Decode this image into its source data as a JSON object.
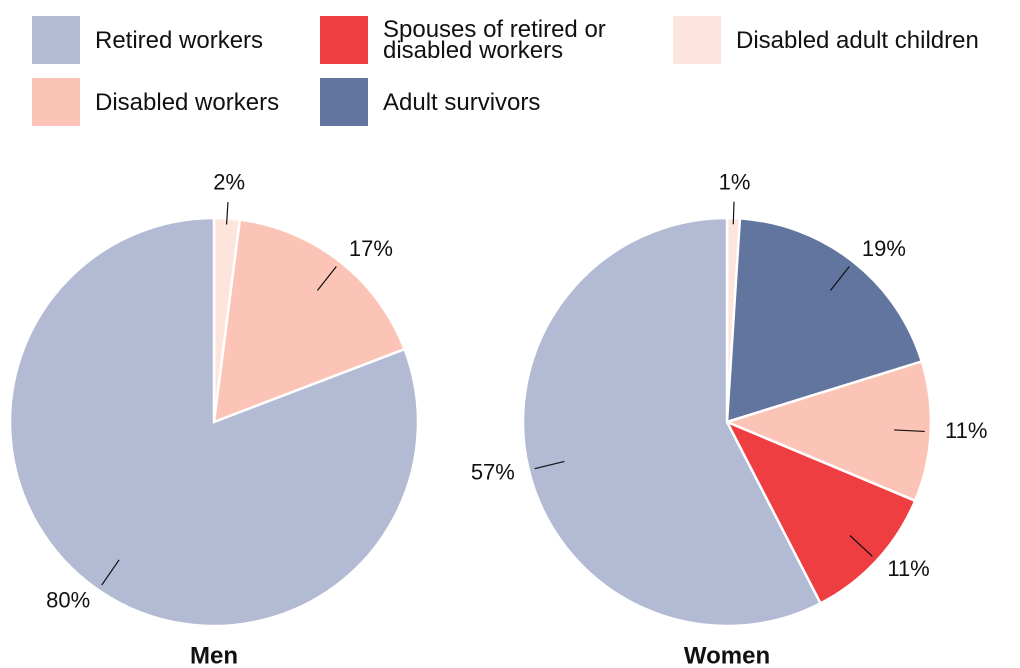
{
  "legend": {
    "entries": [
      {
        "name": "Retired workers",
        "color": "#b3bad3"
      },
      {
        "name": "Disabled workers",
        "color": "#fbc4b6"
      },
      {
        "name": "Spouses of retired or disabled workers",
        "color": "#ef3e42"
      },
      {
        "name": "Adult survivors",
        "color": "#62759e"
      },
      {
        "name": "Disabled adult children",
        "color": "#fde5de"
      }
    ]
  },
  "chart_data": [
    {
      "type": "pie",
      "title": "Men",
      "categories": [
        "Disabled adult children",
        "Disabled workers",
        "Retired workers"
      ],
      "values": [
        2,
        17,
        80
      ],
      "value_labels": [
        "2%",
        "17%",
        "80%"
      ],
      "colors": [
        "#fde5de",
        "#fbc4b6",
        "#b3bad3"
      ]
    },
    {
      "type": "pie",
      "title": "Women",
      "categories": [
        "Disabled adult children",
        "Adult survivors",
        "Disabled workers",
        "Spouses of retired or disabled workers",
        "Retired workers"
      ],
      "values": [
        1,
        19,
        11,
        11,
        57
      ],
      "value_labels": [
        "1%",
        "19%",
        "11%",
        "11%",
        "57%"
      ],
      "colors": [
        "#fde5de",
        "#62759e",
        "#fbc4b6",
        "#ef3e42",
        "#b3bad3"
      ]
    }
  ]
}
